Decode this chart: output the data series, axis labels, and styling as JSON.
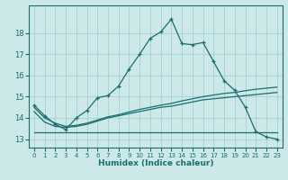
{
  "background_color": "#cce8e8",
  "grid_color": "#aad4d4",
  "line_color": "#1a6e6e",
  "xlabel": "Humidex (Indice chaleur)",
  "xlim": [
    -0.5,
    23.5
  ],
  "ylim": [
    12.6,
    19.3
  ],
  "yticks": [
    13,
    14,
    15,
    16,
    17,
    18
  ],
  "xticks": [
    0,
    1,
    2,
    3,
    4,
    5,
    6,
    7,
    8,
    9,
    10,
    11,
    12,
    13,
    14,
    15,
    16,
    17,
    18,
    19,
    20,
    21,
    22,
    23
  ],
  "line1_x": [
    0,
    1,
    2,
    3,
    4,
    5,
    6,
    7,
    8,
    9,
    10,
    11,
    12,
    13,
    14,
    15,
    16,
    17,
    18,
    19,
    20,
    21,
    22,
    23
  ],
  "line1_y": [
    14.6,
    14.1,
    13.7,
    13.45,
    14.0,
    14.35,
    14.95,
    15.05,
    15.5,
    16.3,
    17.0,
    17.75,
    18.05,
    18.65,
    17.5,
    17.45,
    17.55,
    16.65,
    15.75,
    15.3,
    14.5,
    13.35,
    13.1,
    13.0
  ],
  "line2_x": [
    0,
    1,
    2,
    3,
    4,
    5,
    6,
    7,
    8,
    9,
    10,
    11,
    12,
    13,
    14,
    15,
    16,
    17,
    18,
    19,
    20,
    21,
    22,
    23
  ],
  "line2_y": [
    14.3,
    13.8,
    13.6,
    13.55,
    13.6,
    13.7,
    13.85,
    14.0,
    14.1,
    14.2,
    14.3,
    14.4,
    14.5,
    14.55,
    14.65,
    14.75,
    14.85,
    14.9,
    14.95,
    15.0,
    15.05,
    15.1,
    15.15,
    15.2
  ],
  "line3_x": [
    0,
    1,
    2,
    3,
    4,
    5,
    6,
    7,
    8,
    9,
    10,
    11,
    12,
    13,
    14,
    15,
    16,
    17,
    18,
    19,
    20,
    21,
    22,
    23
  ],
  "line3_y": [
    14.5,
    14.0,
    13.75,
    13.6,
    13.65,
    13.75,
    13.9,
    14.05,
    14.15,
    14.28,
    14.4,
    14.5,
    14.6,
    14.68,
    14.8,
    14.9,
    15.0,
    15.08,
    15.15,
    15.2,
    15.28,
    15.35,
    15.4,
    15.45
  ],
  "line4_x": [
    0,
    1,
    2,
    3,
    4,
    5,
    6,
    7,
    8,
    9,
    10,
    11,
    12,
    13,
    14,
    15,
    16,
    17,
    18,
    19,
    20,
    21,
    22,
    23
  ],
  "line4_y": [
    13.3,
    13.3,
    13.3,
    13.3,
    13.3,
    13.3,
    13.3,
    13.3,
    13.3,
    13.3,
    13.3,
    13.3,
    13.3,
    13.3,
    13.3,
    13.3,
    13.3,
    13.3,
    13.3,
    13.3,
    13.3,
    13.3,
    13.3,
    13.3
  ]
}
